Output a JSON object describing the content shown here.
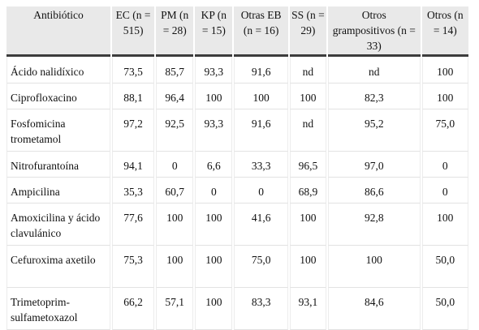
{
  "table": {
    "headers": [
      "Antibiótico",
      "EC (n = 515)",
      "PM (n = 28)",
      "KP (n = 15)",
      "Otras EB (n = 16)",
      "SS (n = 29)",
      "Otros grampositivos (n = 33)",
      "Otros (n = 14)"
    ],
    "rows": [
      [
        "Ácido nalidíxico",
        "73,5",
        "85,7",
        "93,3",
        "91,6",
        "nd",
        "nd",
        "100"
      ],
      [
        "Ciprofloxacino",
        "88,1",
        "96,4",
        "100",
        "100",
        "100",
        "82,3",
        "100"
      ],
      [
        "Fosfomicina trometamol",
        "97,2",
        "92,5",
        "93,3",
        "91,6",
        "nd",
        "95,2",
        "75,0"
      ],
      [
        "Nitrofurantoína",
        "94,1",
        "0",
        "6,6",
        "33,3",
        "96,5",
        "97,0",
        "0"
      ],
      [
        "Ampicilina",
        "35,3",
        "60,7",
        "0",
        "0",
        "68,9",
        "86,6",
        "0"
      ],
      [
        "Amoxicilina y ácido clavulánico",
        "77,6",
        "100",
        "100",
        "41,6",
        "100",
        "92,8",
        "100"
      ],
      [
        "Cefuroxima axetilo",
        "75,3",
        "100",
        "100",
        "75,0",
        "100",
        "100",
        "50,0"
      ],
      [
        "Trimetoprim-sulfametoxazol",
        "66,2",
        "57,1",
        "100",
        "83,3",
        "93,1",
        "84,6",
        "50,0"
      ]
    ]
  }
}
